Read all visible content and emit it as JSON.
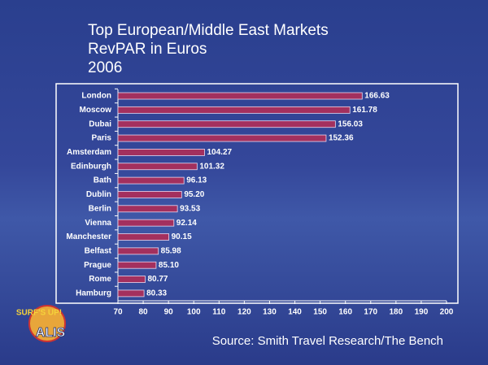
{
  "chart_data": {
    "type": "bar",
    "orientation": "horizontal",
    "title_lines": [
      "Top European/Middle East Markets",
      "RevPAR in Euros",
      "2006"
    ],
    "source": "Source: Smith Travel Research/The Bench",
    "categories": [
      "London",
      "Moscow",
      "Dubai",
      "Paris",
      "Amsterdam",
      "Edinburgh",
      "Bath",
      "Dublin",
      "Berlin",
      "Vienna",
      "Manchester",
      "Belfast",
      "Prague",
      "Rome",
      "Hamburg"
    ],
    "values": [
      166.63,
      161.78,
      156.03,
      152.36,
      104.27,
      101.32,
      96.13,
      95.2,
      93.53,
      92.14,
      90.15,
      85.98,
      85.1,
      80.77,
      80.33
    ],
    "value_labels": [
      "166.63",
      "161.78",
      "156.03",
      "152.36",
      "104.27",
      "101.32",
      "96.13",
      "95.20",
      "93.53",
      "92.14",
      "90.15",
      "85.98",
      "85.10",
      "80.77",
      "80.33"
    ],
    "color": "#a3305e",
    "xlim": [
      70,
      200
    ],
    "xticks": [
      70,
      80,
      90,
      100,
      110,
      120,
      130,
      140,
      150,
      160,
      170,
      180,
      190,
      200
    ]
  },
  "logo": {
    "top": "SURF'S UP!",
    "bottom": "ALIS"
  }
}
